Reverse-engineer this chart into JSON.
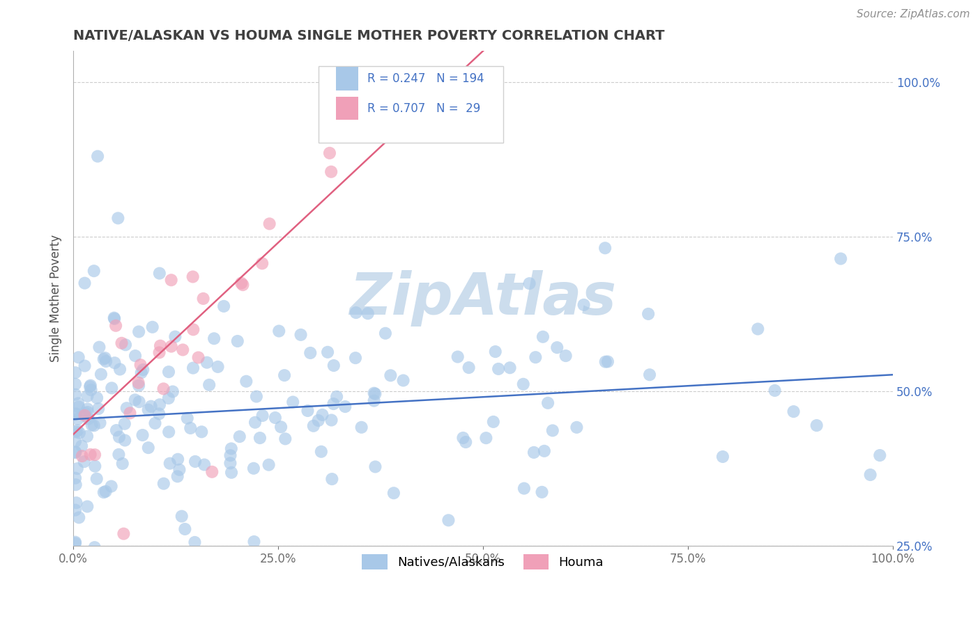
{
  "title": "NATIVE/ALASKAN VS HOUMA SINGLE MOTHER POVERTY CORRELATION CHART",
  "source_text": "Source: ZipAtlas.com",
  "ylabel": "Single Mother Poverty",
  "r_native": 0.247,
  "n_native": 194,
  "r_houma": 0.707,
  "n_houma": 29,
  "color_native": "#a8c8e8",
  "color_houma": "#f0a0b8",
  "line_color_native": "#4472c4",
  "line_color_houma": "#e06080",
  "legend_text_color": "#4472c4",
  "title_color": "#404040",
  "watermark_color": "#ccdded",
  "background_color": "#ffffff",
  "grid_color": "#cccccc",
  "xlim": [
    0.0,
    1.0
  ],
  "ylim": [
    0.3,
    1.05
  ],
  "xticks": [
    0.0,
    0.25,
    0.5,
    0.75,
    1.0
  ],
  "yticks": [
    0.25,
    0.5,
    0.75,
    1.0
  ],
  "xticklabels": [
    "0.0%",
    "25.0%",
    "50.0%",
    "75.0%",
    "100.0%"
  ],
  "yticklabels": [
    "25.0%",
    "50.0%",
    "75.0%",
    "100.0%"
  ],
  "native_line_x0": 0.0,
  "native_line_y0": 0.455,
  "native_line_x1": 1.0,
  "native_line_y1": 0.527,
  "houma_line_x0": 0.0,
  "houma_line_y0": 0.43,
  "houma_line_x1": 0.5,
  "houma_line_y1": 1.05
}
